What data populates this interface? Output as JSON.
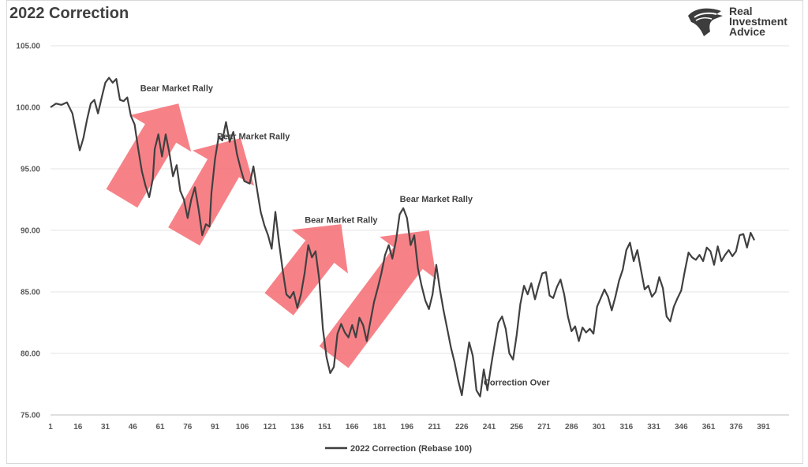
{
  "header": {
    "title": "2022 Correction"
  },
  "logo": {
    "line1": "Real",
    "line2": "Investment",
    "line3": "Advice",
    "icon": "eagle-icon"
  },
  "chart_data": {
    "type": "line",
    "title": "2022 Correction",
    "xlabel": "",
    "ylabel": "",
    "xlim": [
      1,
      405
    ],
    "ylim": [
      75,
      105
    ],
    "y_ticks": [
      "75.00",
      "80.00",
      "85.00",
      "90.00",
      "95.00",
      "100.00",
      "105.00"
    ],
    "x_ticks": [
      "1",
      "16",
      "31",
      "46",
      "61",
      "76",
      "91",
      "106",
      "121",
      "136",
      "151",
      "166",
      "181",
      "196",
      "211",
      "226",
      "241",
      "256",
      "271",
      "286",
      "301",
      "316",
      "331",
      "346",
      "361",
      "376",
      "391"
    ],
    "grid": "horizontal",
    "legend_position": "bottom",
    "series": [
      {
        "name": "2022 Correction (Rebase 100)",
        "color": "#404040",
        "points": [
          [
            1,
            100.0
          ],
          [
            4,
            100.3
          ],
          [
            7,
            100.2
          ],
          [
            10,
            100.4
          ],
          [
            13,
            99.5
          ],
          [
            15,
            98.0
          ],
          [
            17,
            96.5
          ],
          [
            19,
            97.5
          ],
          [
            21,
            99.0
          ],
          [
            23,
            100.3
          ],
          [
            25,
            100.6
          ],
          [
            27,
            99.5
          ],
          [
            29,
            100.8
          ],
          [
            31,
            102.0
          ],
          [
            33,
            102.4
          ],
          [
            35,
            102.0
          ],
          [
            37,
            102.3
          ],
          [
            39,
            100.6
          ],
          [
            41,
            100.5
          ],
          [
            43,
            100.8
          ],
          [
            45,
            99.3
          ],
          [
            47,
            98.6
          ],
          [
            49,
            96.6
          ],
          [
            51,
            94.8
          ],
          [
            53,
            93.6
          ],
          [
            55,
            92.7
          ],
          [
            57,
            94.2
          ],
          [
            58,
            96.6
          ],
          [
            60,
            97.8
          ],
          [
            62,
            96.0
          ],
          [
            64,
            97.8
          ],
          [
            66,
            96.3
          ],
          [
            68,
            94.4
          ],
          [
            70,
            95.3
          ],
          [
            72,
            93.2
          ],
          [
            74,
            92.5
          ],
          [
            76,
            91.0
          ],
          [
            78,
            92.5
          ],
          [
            80,
            93.5
          ],
          [
            82,
            91.7
          ],
          [
            84,
            89.6
          ],
          [
            86,
            90.5
          ],
          [
            88,
            90.3
          ],
          [
            89,
            93.0
          ],
          [
            91,
            95.8
          ],
          [
            93,
            97.6
          ],
          [
            95,
            97.3
          ],
          [
            97,
            98.8
          ],
          [
            99,
            97.2
          ],
          [
            101,
            98.0
          ],
          [
            103,
            96.2
          ],
          [
            105,
            95.0
          ],
          [
            107,
            94.0
          ],
          [
            110,
            93.8
          ],
          [
            112,
            95.2
          ],
          [
            114,
            93.3
          ],
          [
            116,
            91.5
          ],
          [
            118,
            90.4
          ],
          [
            120,
            89.6
          ],
          [
            122,
            88.5
          ],
          [
            124,
            91.5
          ],
          [
            126,
            89.0
          ],
          [
            128,
            86.8
          ],
          [
            130,
            84.8
          ],
          [
            132,
            84.5
          ],
          [
            134,
            85.0
          ],
          [
            136,
            83.7
          ],
          [
            138,
            84.8
          ],
          [
            140,
            86.5
          ],
          [
            142,
            88.8
          ],
          [
            144,
            87.8
          ],
          [
            146,
            88.3
          ],
          [
            148,
            86.0
          ],
          [
            150,
            82.0
          ],
          [
            152,
            79.7
          ],
          [
            154,
            78.4
          ],
          [
            156,
            78.9
          ],
          [
            158,
            81.6
          ],
          [
            160,
            82.4
          ],
          [
            162,
            81.7
          ],
          [
            164,
            81.3
          ],
          [
            166,
            82.3
          ],
          [
            168,
            81.3
          ],
          [
            170,
            82.9
          ],
          [
            172,
            82.3
          ],
          [
            174,
            81.0
          ],
          [
            176,
            82.6
          ],
          [
            178,
            84.2
          ],
          [
            180,
            85.3
          ],
          [
            182,
            86.5
          ],
          [
            184,
            88.0
          ],
          [
            186,
            88.8
          ],
          [
            188,
            87.7
          ],
          [
            190,
            89.2
          ],
          [
            192,
            91.3
          ],
          [
            194,
            91.8
          ],
          [
            196,
            91.0
          ],
          [
            198,
            88.8
          ],
          [
            200,
            89.6
          ],
          [
            202,
            86.9
          ],
          [
            204,
            85.5
          ],
          [
            206,
            84.3
          ],
          [
            208,
            83.6
          ],
          [
            210,
            84.8
          ],
          [
            212,
            87.2
          ],
          [
            214,
            85.2
          ],
          [
            216,
            83.5
          ],
          [
            218,
            82.0
          ],
          [
            220,
            80.5
          ],
          [
            222,
            79.3
          ],
          [
            224,
            77.8
          ],
          [
            226,
            76.6
          ],
          [
            228,
            78.8
          ],
          [
            230,
            80.9
          ],
          [
            232,
            79.8
          ],
          [
            234,
            77.0
          ],
          [
            236,
            76.5
          ],
          [
            238,
            78.7
          ],
          [
            240,
            77.0
          ],
          [
            242,
            79.0
          ],
          [
            244,
            80.8
          ],
          [
            246,
            82.5
          ],
          [
            248,
            83.0
          ],
          [
            250,
            82.0
          ],
          [
            252,
            80.0
          ],
          [
            254,
            79.5
          ],
          [
            256,
            81.5
          ],
          [
            258,
            84.0
          ],
          [
            260,
            85.5
          ],
          [
            262,
            84.8
          ],
          [
            264,
            85.7
          ],
          [
            266,
            84.4
          ],
          [
            268,
            85.5
          ],
          [
            270,
            86.5
          ],
          [
            272,
            86.6
          ],
          [
            274,
            84.7
          ],
          [
            276,
            84.5
          ],
          [
            278,
            85.4
          ],
          [
            280,
            86.0
          ],
          [
            282,
            84.8
          ],
          [
            284,
            83.0
          ],
          [
            286,
            81.8
          ],
          [
            288,
            82.2
          ],
          [
            290,
            81.0
          ],
          [
            292,
            82.1
          ],
          [
            294,
            81.7
          ],
          [
            296,
            82.0
          ],
          [
            298,
            81.6
          ],
          [
            300,
            83.8
          ],
          [
            302,
            84.5
          ],
          [
            304,
            85.2
          ],
          [
            306,
            84.6
          ],
          [
            308,
            83.5
          ],
          [
            310,
            84.6
          ],
          [
            312,
            85.9
          ],
          [
            314,
            86.8
          ],
          [
            316,
            88.4
          ],
          [
            318,
            89.0
          ],
          [
            320,
            87.5
          ],
          [
            322,
            88.4
          ],
          [
            324,
            86.8
          ],
          [
            326,
            85.2
          ],
          [
            328,
            85.5
          ],
          [
            330,
            84.6
          ],
          [
            332,
            85.0
          ],
          [
            334,
            86.2
          ],
          [
            336,
            85.3
          ],
          [
            338,
            83.0
          ],
          [
            340,
            82.6
          ],
          [
            342,
            83.8
          ],
          [
            344,
            84.5
          ],
          [
            346,
            85.1
          ],
          [
            348,
            86.7
          ],
          [
            350,
            88.2
          ],
          [
            352,
            87.8
          ],
          [
            354,
            87.6
          ],
          [
            356,
            88.0
          ],
          [
            358,
            87.5
          ],
          [
            360,
            88.6
          ],
          [
            362,
            88.3
          ],
          [
            364,
            87.2
          ],
          [
            366,
            88.7
          ],
          [
            368,
            87.5
          ],
          [
            370,
            88.0
          ],
          [
            372,
            88.4
          ],
          [
            374,
            87.9
          ],
          [
            376,
            88.3
          ],
          [
            378,
            89.6
          ],
          [
            380,
            89.7
          ],
          [
            382,
            88.6
          ],
          [
            384,
            89.8
          ],
          [
            386,
            89.2
          ]
        ]
      }
    ],
    "annotations": [
      {
        "text": "Bear Market Rally",
        "x": 70,
        "y": 101.3
      },
      {
        "text": "Bear Market Rally",
        "x": 112,
        "y": 97.4
      },
      {
        "text": "Bear Market Rally",
        "x": 160,
        "y": 90.6
      },
      {
        "text": "Bear Market Rally",
        "x": 212,
        "y": 92.3
      },
      {
        "text": "Correction Over",
        "x": 256,
        "y": 77.4
      }
    ],
    "arrows": [
      {
        "label": "rally-arrow-1",
        "from": [
          40,
          92.6
        ],
        "to": [
          71,
          100.3
        ]
      },
      {
        "label": "rally-arrow-2",
        "from": [
          74,
          89.5
        ],
        "to": [
          105,
          97.5
        ]
      },
      {
        "label": "rally-arrow-3",
        "from": [
          126,
          84.0
        ],
        "to": [
          160,
          90.5
        ]
      },
      {
        "label": "rally-arrow-4",
        "from": [
          156,
          79.7
        ],
        "to": [
          208,
          90.0
        ]
      }
    ],
    "arrow_color": "#f4666e"
  }
}
